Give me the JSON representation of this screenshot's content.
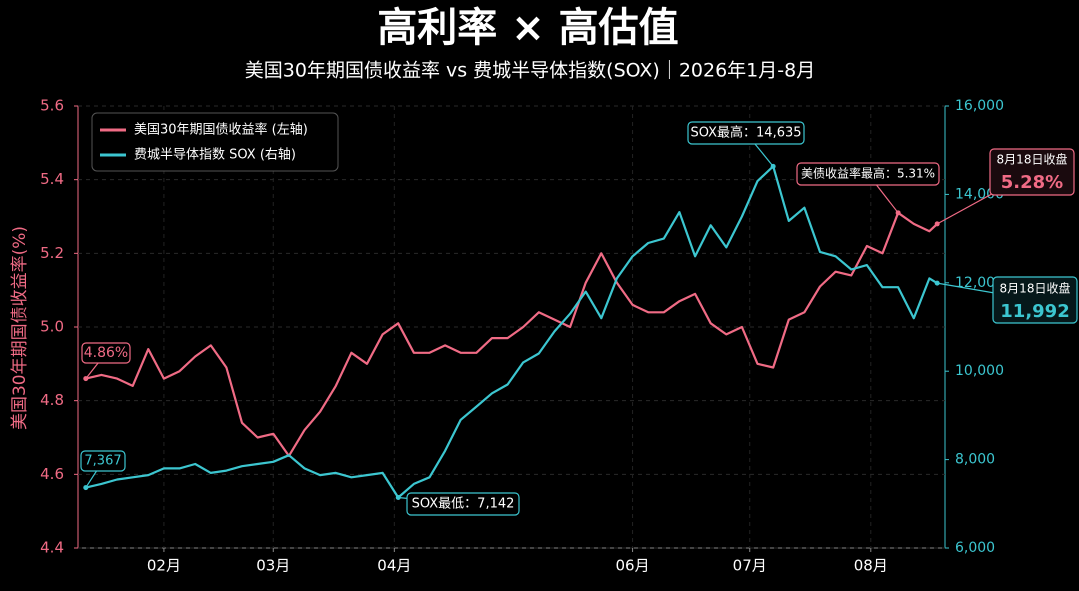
{
  "chart_data": {
    "type": "line",
    "title": "高利率 × 高估值",
    "subtitle": "美国30年期国债收益率 vs 费城半导体指数(SOX)｜2026年1月-8月",
    "ylabel": "美国30年期国债收益率(%)",
    "x": [
      12,
      16,
      20,
      24,
      28,
      32,
      36,
      40,
      44,
      48,
      52,
      56,
      60,
      64,
      68,
      72,
      76,
      80,
      84,
      88,
      92,
      96,
      100,
      104,
      108,
      112,
      116,
      120,
      124,
      128,
      132,
      136,
      140,
      144,
      148,
      152,
      156,
      160,
      164,
      168,
      172,
      176,
      180,
      184,
      188,
      192,
      196,
      200,
      204,
      208,
      212,
      216,
      220,
      224,
      228,
      230
    ],
    "xlim": [
      10,
      232
    ],
    "xticks": [
      {
        "value": 32,
        "label": "02月"
      },
      {
        "value": 60,
        "label": "03月"
      },
      {
        "value": 91,
        "label": "04月"
      },
      {
        "value": 152,
        "label": "06月"
      },
      {
        "value": 182,
        "label": "07月"
      },
      {
        "value": 213,
        "label": "08月"
      }
    ],
    "ylim": [
      4.4,
      5.6
    ],
    "yticks": [
      4.4,
      4.6,
      4.8,
      {
        "value": 5,
        "label": "5.0"
      },
      5.2,
      5.4,
      5.6
    ],
    "y2lim": [
      6000,
      16000
    ],
    "y2ticks": [
      {
        "value": 6000,
        "label": "6,000"
      },
      {
        "value": 8000,
        "label": "8,000"
      },
      {
        "value": 10000,
        "label": "10,000"
      },
      {
        "value": 12000,
        "label": "12,000"
      },
      {
        "value": 14000,
        "label": "14,000"
      },
      {
        "value": 16000,
        "label": "16,000"
      }
    ],
    "grid": true,
    "legend": "upper left",
    "series": [
      {
        "name": "美国30年期国债收益率 (左轴)",
        "color": "#f06b85",
        "values": [
          4.86,
          4.87,
          4.86,
          4.84,
          4.94,
          4.86,
          4.88,
          4.92,
          4.95,
          4.89,
          4.74,
          4.7,
          4.71,
          4.65,
          4.72,
          4.77,
          4.84,
          4.93,
          4.9,
          4.98,
          5.01,
          4.93,
          4.93,
          4.95,
          4.93,
          4.93,
          4.97,
          4.97,
          5.0,
          5.04,
          5.02,
          5.0,
          5.12,
          5.2,
          5.12,
          5.06,
          5.04,
          5.04,
          5.07,
          5.09,
          5.01,
          4.98,
          5.0,
          4.9,
          4.89,
          5.02,
          5.04,
          5.11,
          5.15,
          5.14,
          5.22,
          5.2,
          5.31,
          5.28,
          5.26,
          5.28
        ]
      },
      {
        "name": "费城半导体指数 SOX (右轴)",
        "color": "#3cc6d0",
        "axis": "y2",
        "values": [
          7367,
          7450,
          7550,
          7600,
          7650,
          7800,
          7800,
          7900,
          7700,
          7750,
          7850,
          7900,
          7950,
          8100,
          7800,
          7650,
          7700,
          7600,
          7650,
          7700,
          7142,
          7450,
          7600,
          8200,
          8900,
          9200,
          9500,
          9700,
          10200,
          10400,
          10900,
          11300,
          11800,
          11200,
          12100,
          12600,
          12900,
          13000,
          13600,
          12600,
          13300,
          12800,
          13500,
          14300,
          14635,
          13400,
          13700,
          12700,
          12600,
          12300,
          12400,
          11900,
          11900,
          11200,
          12100,
          11992
        ]
      }
    ],
    "annotations": [
      "4.86%",
      "7,367",
      "SOX最低：7,142",
      "SOX最高：14,635",
      "美债收益率最高：5.31%",
      "8月18日收盘",
      "5.28%",
      "8月18日收盘",
      "11,992"
    ]
  }
}
